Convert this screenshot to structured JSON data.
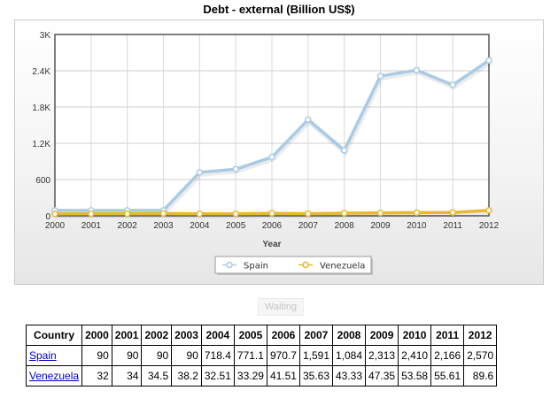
{
  "chart_data": {
    "type": "line",
    "title": "Debt - external (Billion US$)",
    "xlabel": "Year",
    "ylabel": "",
    "x": [
      "2000",
      "2001",
      "2002",
      "2003",
      "2004",
      "2005",
      "2006",
      "2007",
      "2008",
      "2009",
      "2010",
      "2011",
      "2012"
    ],
    "ylim": [
      0,
      3000
    ],
    "yticks": [
      0,
      600,
      1200,
      1800,
      2400,
      3000
    ],
    "ytick_labels": [
      "0",
      "600",
      "1.2K",
      "1.8K",
      "2.4K",
      "3K"
    ],
    "grid": true,
    "legend_position": "bottom",
    "series": [
      {
        "name": "Spain",
        "color": "#a9cbe6",
        "values": [
          90,
          90,
          90,
          90,
          718.4,
          771.1,
          970.7,
          1591,
          1084,
          2313,
          2410,
          2166,
          2570
        ]
      },
      {
        "name": "Venezuela",
        "color": "#e8b830",
        "values": [
          32,
          34,
          34.5,
          38.2,
          32.51,
          33.29,
          41.51,
          35.63,
          43.33,
          47.35,
          53.58,
          55.61,
          89.6
        ]
      }
    ]
  },
  "waiting_label": "Waiting",
  "table": {
    "header": [
      "Country",
      "2000",
      "2001",
      "2002",
      "2003",
      "2004",
      "2005",
      "2006",
      "2007",
      "2008",
      "2009",
      "2010",
      "2011",
      "2012"
    ],
    "rows": [
      {
        "country": "Spain",
        "cells": [
          "90",
          "90",
          "90",
          "90",
          "718.4",
          "771.1",
          "970.7",
          "1,591",
          "1,084",
          "2,313",
          "2,410",
          "2,166",
          "2,570"
        ]
      },
      {
        "country": "Venezuela",
        "cells": [
          "32",
          "34",
          "34.5",
          "38.2",
          "32.51",
          "33.29",
          "41.51",
          "35.63",
          "43.33",
          "47.35",
          "53.58",
          "55.61",
          "89.6"
        ]
      }
    ]
  }
}
